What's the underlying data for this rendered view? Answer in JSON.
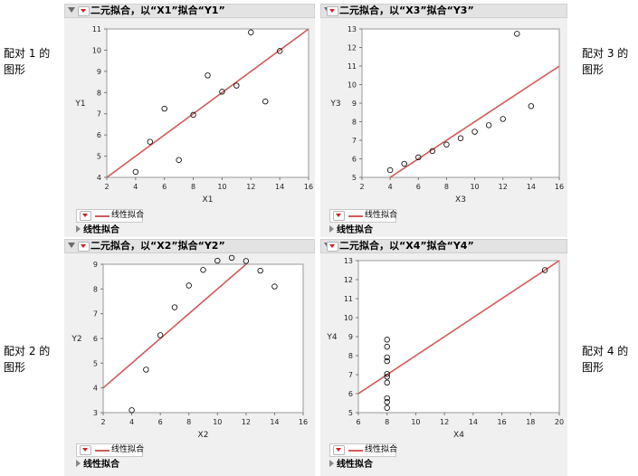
{
  "side_labels": {
    "pair1": "配对 1 的\n图形",
    "pair3": "配对 3 的\n图形",
    "pair2": "配对 2 的\n图形",
    "pair4": "配对 4 的\n图形"
  },
  "legend_label": "线性拟合",
  "fit_outline_label": "线性拟合",
  "colors": {
    "fit_line": "#d35a5a",
    "marker": "#000000",
    "plot_bg": "#ffffff",
    "panel_bg": "#f0f0f0"
  },
  "chart_data": [
    {
      "type": "scatter",
      "title": "二元拟合，以“X1”拟合“Y1”",
      "xlabel": "X1",
      "ylabel": "Y1",
      "xlim": [
        2,
        16
      ],
      "ylim": [
        4,
        11
      ],
      "xticks": [
        2,
        4,
        6,
        8,
        10,
        12,
        14,
        16
      ],
      "yticks": [
        4,
        5,
        6,
        7,
        8,
        9,
        10,
        11
      ],
      "x": [
        4,
        5,
        6,
        7,
        8,
        9,
        10,
        11,
        12,
        13,
        14
      ],
      "y": [
        4.26,
        5.68,
        7.24,
        4.82,
        6.95,
        8.81,
        8.04,
        8.33,
        10.84,
        7.58,
        9.96
      ],
      "fit": {
        "intercept": 3.0,
        "slope": 0.5
      }
    },
    {
      "type": "scatter",
      "title": "二元拟合，以“X3”拟合“Y3”",
      "xlabel": "X3",
      "ylabel": "Y3",
      "xlim": [
        2,
        16
      ],
      "ylim": [
        5,
        13
      ],
      "xticks": [
        2,
        4,
        6,
        8,
        10,
        12,
        14,
        16
      ],
      "yticks": [
        5,
        6,
        7,
        8,
        9,
        10,
        11,
        12,
        13
      ],
      "x": [
        4,
        5,
        6,
        7,
        8,
        9,
        10,
        11,
        12,
        13,
        14
      ],
      "y": [
        5.39,
        5.73,
        6.08,
        6.42,
        6.77,
        7.11,
        7.46,
        7.81,
        8.15,
        12.74,
        8.84
      ],
      "fit": {
        "intercept": 3.0,
        "slope": 0.5
      }
    },
    {
      "type": "scatter",
      "title": "二元拟合，以“X2”拟合“Y2”",
      "xlabel": "X2",
      "ylabel": "Y2",
      "xlim": [
        2,
        16
      ],
      "ylim": [
        3,
        9
      ],
      "xticks": [
        2,
        4,
        6,
        8,
        10,
        12,
        14,
        16
      ],
      "yticks": [
        3,
        4,
        5,
        6,
        7,
        8,
        9
      ],
      "x": [
        4,
        5,
        6,
        7,
        8,
        9,
        10,
        11,
        12,
        13,
        14
      ],
      "y": [
        3.1,
        4.74,
        6.13,
        7.26,
        8.14,
        8.77,
        9.14,
        9.26,
        9.13,
        8.74,
        8.1
      ],
      "fit": {
        "intercept": 3.0,
        "slope": 0.5
      }
    },
    {
      "type": "scatter",
      "title": "二元拟合，以“X4”拟合“Y4”",
      "xlabel": "X4",
      "ylabel": "Y4",
      "xlim": [
        6,
        20
      ],
      "ylim": [
        5,
        13
      ],
      "xticks": [
        6,
        8,
        10,
        12,
        14,
        16,
        18,
        20
      ],
      "yticks": [
        5,
        6,
        7,
        8,
        9,
        10,
        11,
        12,
        13
      ],
      "x": [
        8,
        8,
        8,
        8,
        8,
        8,
        8,
        19,
        8,
        8,
        8
      ],
      "y": [
        6.58,
        5.76,
        7.71,
        8.84,
        8.47,
        7.04,
        5.25,
        12.5,
        5.56,
        7.91,
        6.89
      ],
      "fit": {
        "intercept": 3.0,
        "slope": 0.5
      }
    }
  ]
}
